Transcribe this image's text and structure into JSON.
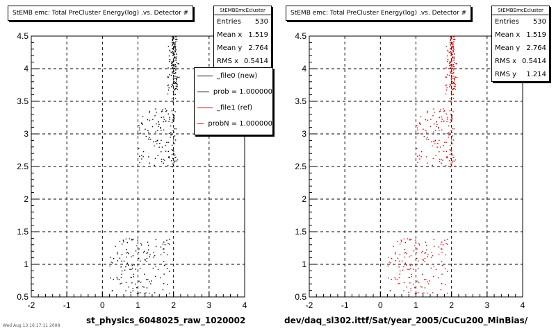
{
  "colors": {
    "new": "#000000",
    "ref": "#cc0000",
    "grid": "#000000"
  },
  "left": {
    "title": "StEMB emc: Total PreCluster Energy(log) .vs. Detector #",
    "stats": {
      "title": "StEMBEmcEcluster",
      "rows": [
        {
          "label": "Entries",
          "value": "530"
        },
        {
          "label": "Mean x",
          "value": "1.519"
        },
        {
          "label": "Mean y",
          "value": "2.764"
        },
        {
          "label": "RMS x",
          "value": "0.5414"
        }
      ]
    },
    "legend": [
      {
        "label": "_file0 (new)",
        "color": "#000000"
      },
      {
        "label": "prob = 1.000000",
        "color": "#000000"
      },
      {
        "label": "_file1 (ref)",
        "color": "#cc0000"
      },
      {
        "label": "probN = 1.000000",
        "color": "#cc0000"
      }
    ],
    "xtitle": "st_physics_6048025_raw_1020002",
    "footer": "Wed Aug 13 16:17:11 2008"
  },
  "right": {
    "title": "StEMB emc: Total PreCluster Energy(log) .vs. Detector #",
    "stats": {
      "title": "StEMBEmcEcluster",
      "rows": [
        {
          "label": "Entries",
          "value": "530"
        },
        {
          "label": "Mean x",
          "value": "1.519"
        },
        {
          "label": "Mean y",
          "value": "2.764"
        },
        {
          "label": "RMS x",
          "value": "0.5414"
        },
        {
          "label": "RMS y",
          "value": "1.214"
        }
      ]
    },
    "xtitle": "dev/daq_sl302.ittf/Sat/year_2005/CuCu200_MinBias/"
  },
  "chart_data": [
    {
      "type": "scatter",
      "title": "StEMB emc: Total PreCluster Energy(log) .vs. Detector #",
      "xlabel": "st_physics_6048025_raw_1020002",
      "ylabel": "",
      "xlim": [
        -2,
        4
      ],
      "ylim": [
        0.5,
        4.5
      ],
      "xticks": [
        -2,
        -1,
        0,
        1,
        2,
        3,
        4
      ],
      "yticks": [
        0.5,
        1,
        1.5,
        2,
        2.5,
        3,
        3.5,
        4,
        4.5
      ],
      "grid": true,
      "series": [
        {
          "name": "_file0 (new)",
          "color": "#000000",
          "clusters": [
            {
              "x": [
                1.85,
                2.2
              ],
              "y": [
                3.6,
                4.5
              ],
              "n": 150,
              "core": 2.0
            },
            {
              "x": [
                1.0,
                2.0
              ],
              "y": [
                2.5,
                3.4
              ],
              "n": 100
            },
            {
              "x": [
                0.2,
                1.9
              ],
              "y": [
                0.55,
                1.4
              ],
              "n": 140
            },
            {
              "x": [
                1.9,
                2.2
              ],
              "y": [
                2.5,
                3.6
              ],
              "n": 40,
              "core": 2.0
            }
          ]
        },
        {
          "name": "_file1 (ref)",
          "color": "#cc0000",
          "clusters": [
            {
              "x": [
                1.85,
                2.2
              ],
              "y": [
                3.6,
                4.5
              ],
              "n": 150,
              "core": 2.0
            },
            {
              "x": [
                1.0,
                2.0
              ],
              "y": [
                2.5,
                3.4
              ],
              "n": 100
            },
            {
              "x": [
                0.2,
                1.9
              ],
              "y": [
                0.55,
                1.4
              ],
              "n": 140
            },
            {
              "x": [
                1.9,
                2.2
              ],
              "y": [
                2.5,
                3.6
              ],
              "n": 40,
              "core": 2.0
            }
          ]
        }
      ]
    }
  ]
}
